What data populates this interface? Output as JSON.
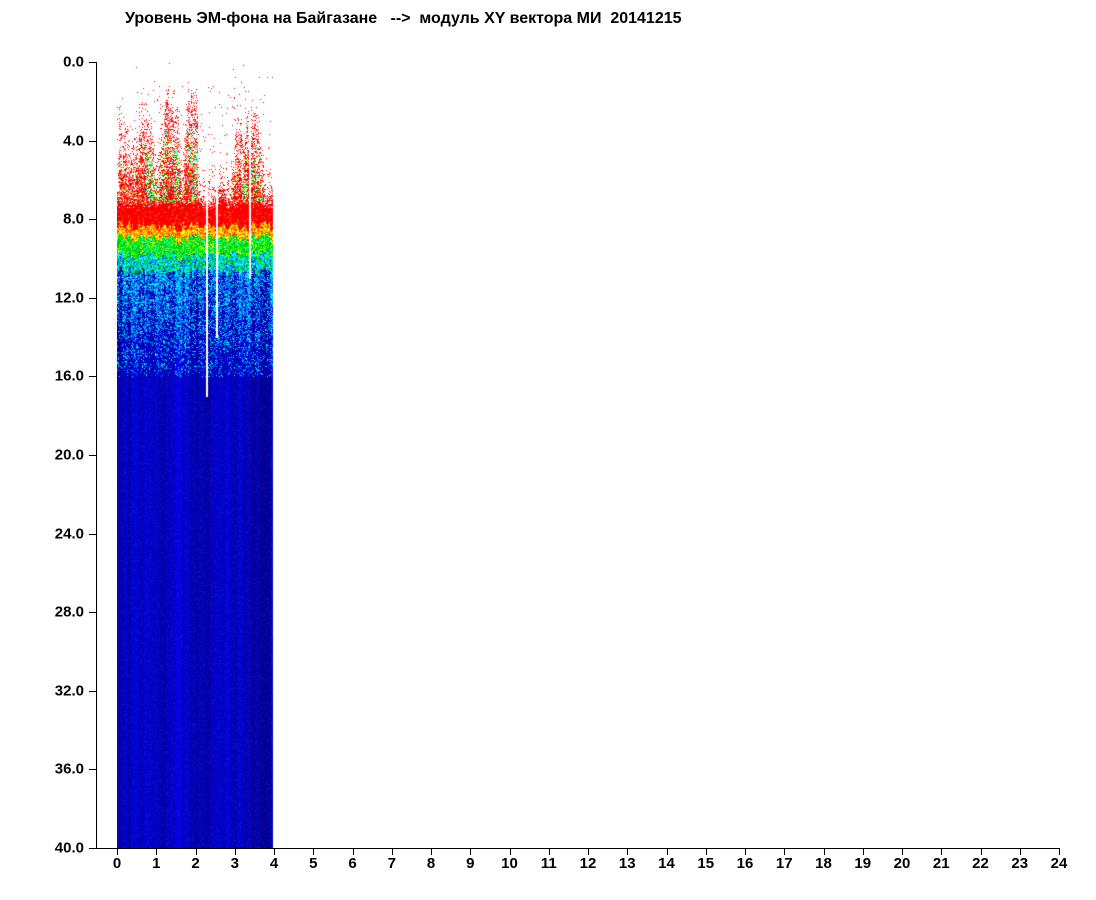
{
  "chart_data": {
    "type": "heatmap",
    "title": "Уровень ЭМ-фона на Байгазане   -->  модуль XY вектора МИ  20141215",
    "station": "Байгазан",
    "parameter": "модуль XY вектора МИ",
    "date": "20141215",
    "xlabel": "",
    "ylabel": "",
    "xlim": [
      0,
      24
    ],
    "ylim": [
      0,
      40
    ],
    "y_axis_inverted": true,
    "x_ticks": [
      "0",
      "1",
      "2",
      "3",
      "4",
      "5",
      "6",
      "7",
      "8",
      "9",
      "10",
      "11",
      "12",
      "13",
      "14",
      "15",
      "16",
      "17",
      "18",
      "19",
      "20",
      "21",
      "22",
      "23",
      "24"
    ],
    "y_ticks": [
      "0.0",
      "4.0",
      "8.0",
      "12.0",
      "16.0",
      "20.0",
      "24.0",
      "28.0",
      "32.0",
      "36.0",
      "40.0"
    ],
    "grid": false,
    "legend": false,
    "colormap": "rainbow: red = high level, yellow/green = medium, blue = low",
    "data_time_extent_hours": [
      0,
      3.98
    ],
    "depth_profile": [
      {
        "range": [
          0,
          1.5
        ],
        "content": "white background, no signal"
      },
      {
        "range": [
          1.5,
          7.4
        ],
        "content": "sparse red speckle noise; activity peaks near hours 0-2 and 2.9-3.7 with green/yellow/cyan patches at depths 4-7"
      },
      {
        "range": [
          7.4,
          8.35
        ],
        "content": "dense solid red band"
      },
      {
        "range": [
          8.35,
          8.9
        ],
        "content": "orange-yellow transition band"
      },
      {
        "range": [
          8.9,
          9.8
        ],
        "content": "green band"
      },
      {
        "range": [
          9.8,
          10.7
        ],
        "content": "cyan-green band"
      },
      {
        "range": [
          10.7,
          16
        ],
        "content": "blue with cyan speckle, strong vertical striation"
      },
      {
        "range": [
          16,
          40
        ],
        "content": "solid blue columns with vertical stripe intensity variation"
      }
    ],
    "render": {
      "seed": 20141215,
      "data_hours_end": 3.98,
      "palette": {
        "red": "#ff0000",
        "red_dark": "#dd0000",
        "orange": "#ff8000",
        "yellow": "#ffff00",
        "green": "#00cc00",
        "green_bright": "#00ff00",
        "cyan": "#00ffff",
        "sky": "#008cff",
        "blue_bright": "#0000ee",
        "blue_mid": "#0000be",
        "blue_dark": "#000082"
      },
      "bands": {
        "red_band_top": 7.4,
        "red_band_bottom": 8.35,
        "yellow_bottom": 8.9,
        "green_bottom": 9.8,
        "cyan_green_bottom": 10.7,
        "speckle_blue_bottom": 16.0
      },
      "activity_clusters": [
        [
          0.05,
          2.05
        ],
        [
          2.9,
          3.72
        ]
      ],
      "envelope": {
        "cluster_min_depth": 1.4,
        "cluster_base": 2.0,
        "cluster_range": 4.2,
        "quiet_base": 6.2,
        "quiet_range": 1.0
      },
      "gaps": [
        {
          "hour": 2.28,
          "width": 0.06,
          "max_depth": 17
        },
        {
          "hour": 2.53,
          "width": 0.045,
          "max_depth": 14
        },
        {
          "hour": 3.38,
          "width": 0.05,
          "max_depth": 11
        }
      ]
    }
  }
}
